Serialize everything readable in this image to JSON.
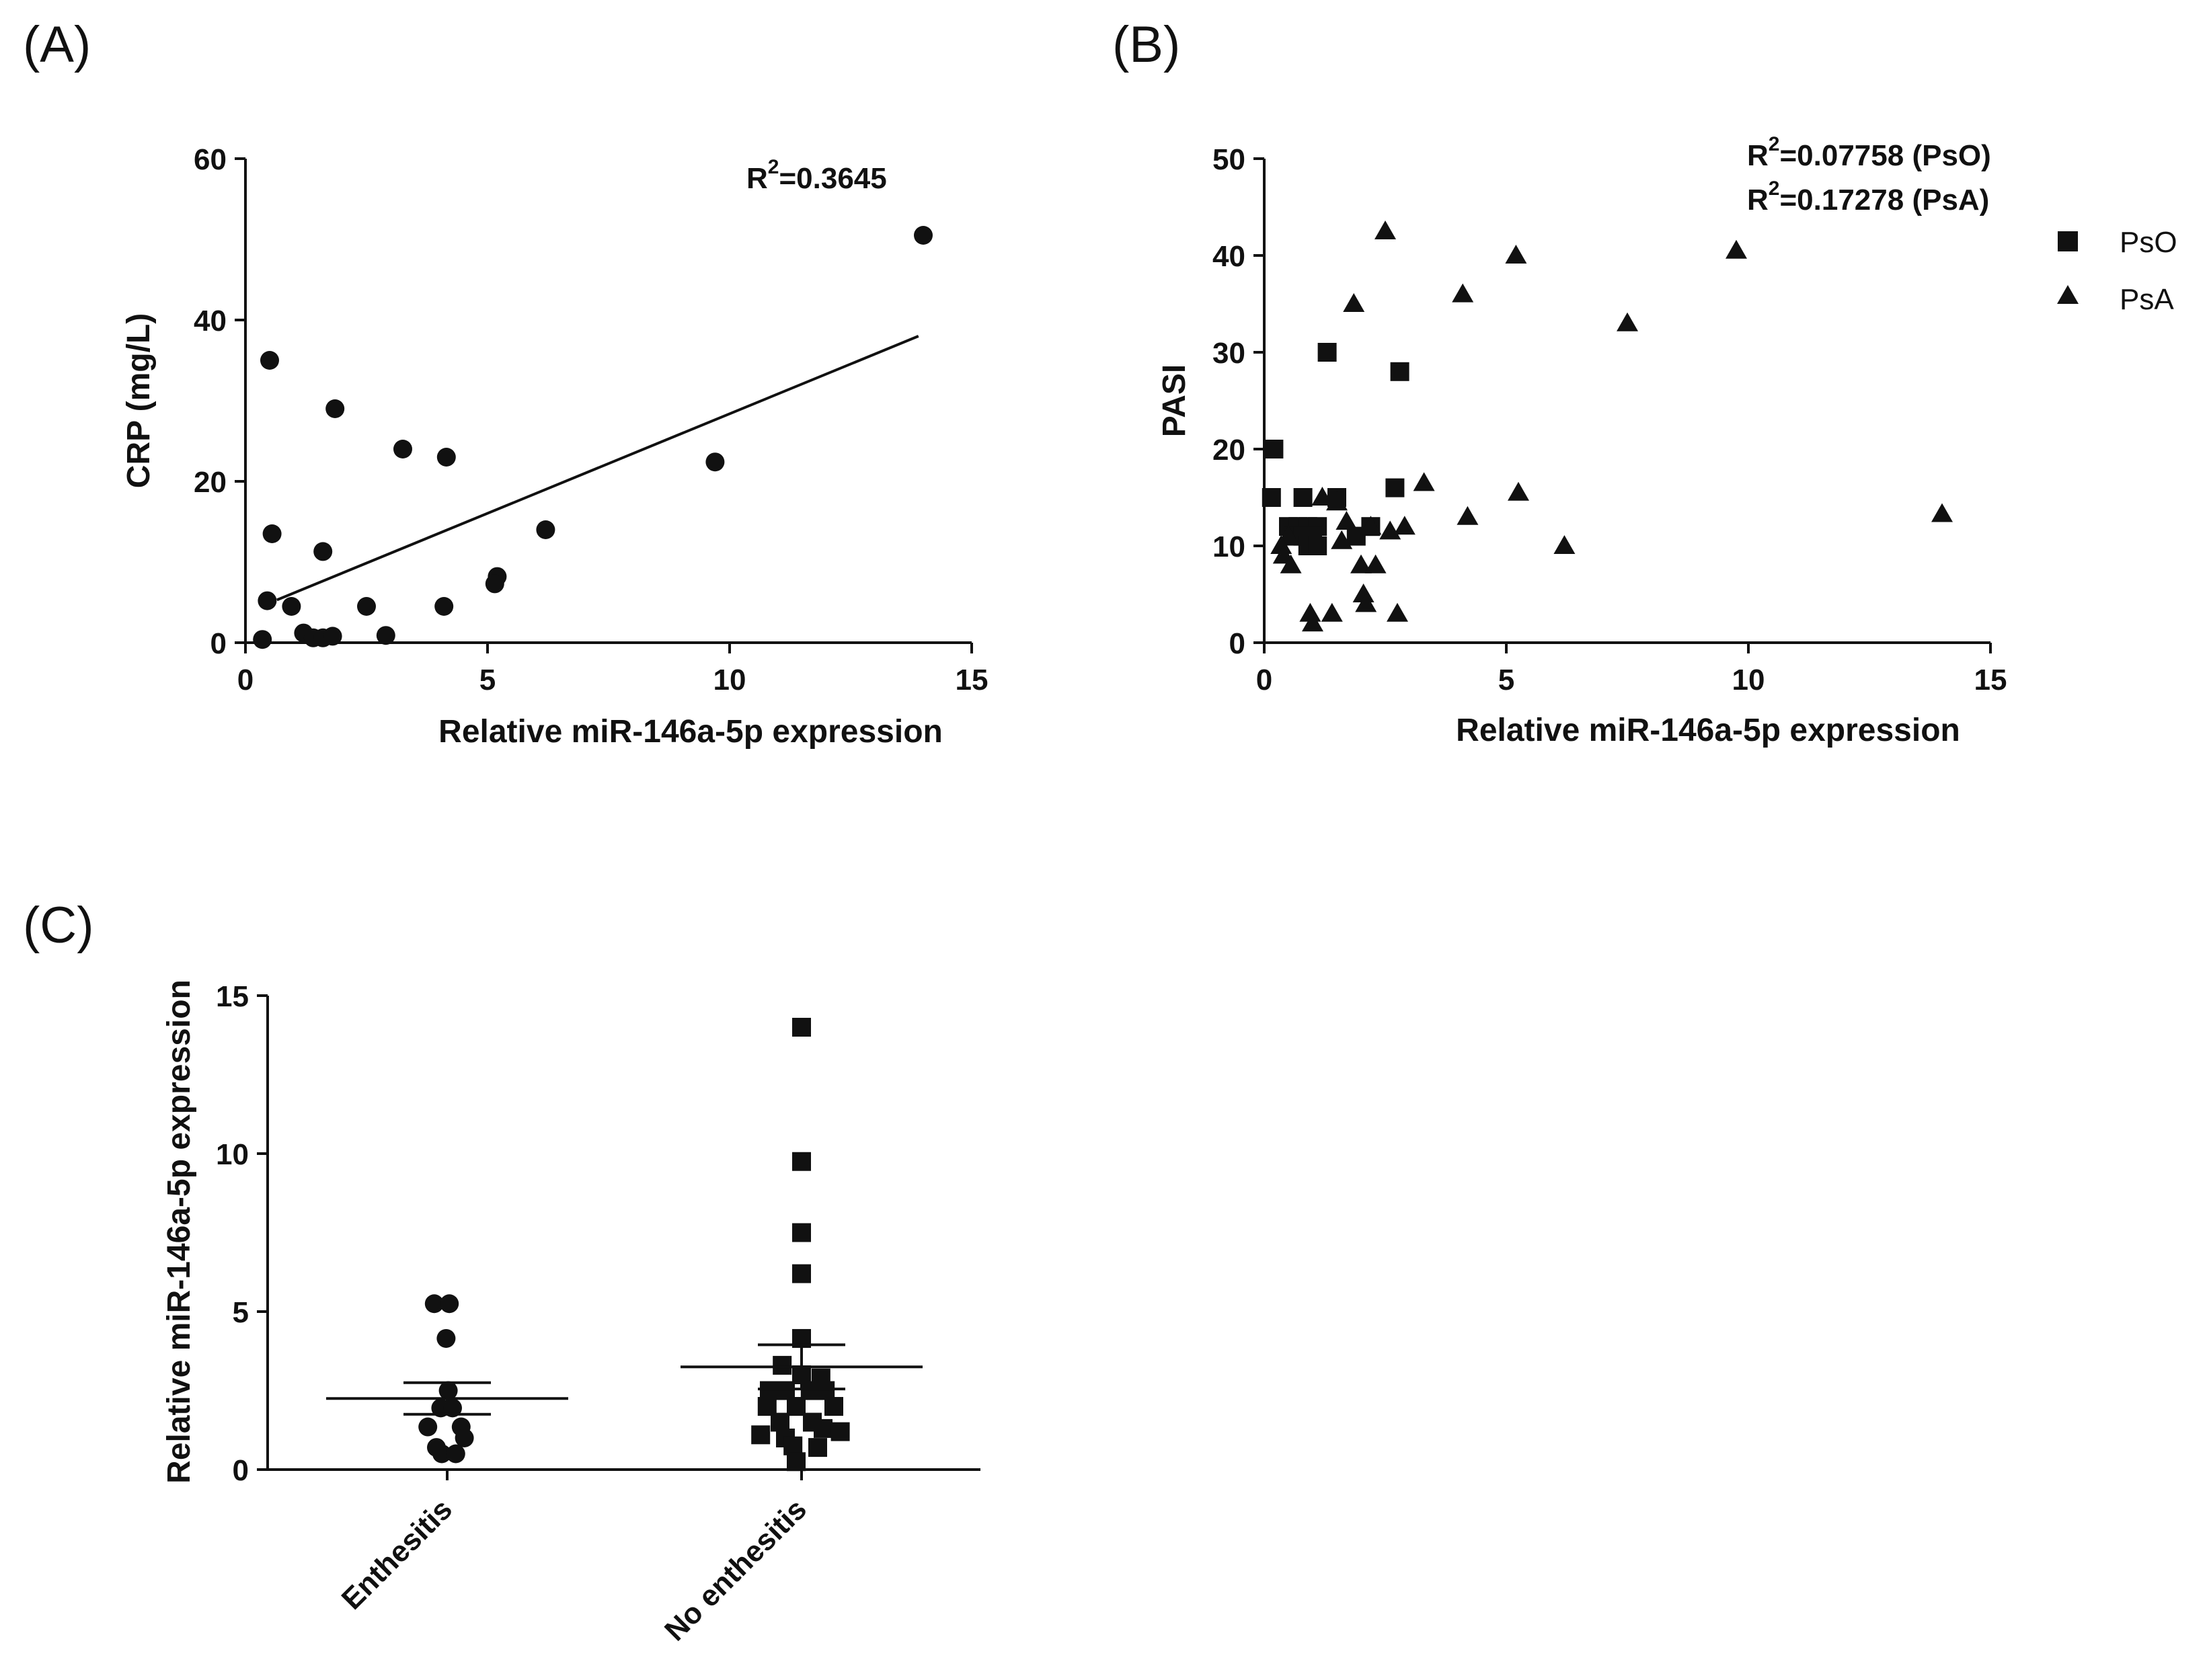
{
  "chart_data": [
    {
      "panel": "(A)",
      "type": "scatter",
      "xlabel": "Relative miR-146a-5p expression",
      "ylabel": "CRP (mg/L)",
      "xlim": [
        0,
        15
      ],
      "ylim": [
        0,
        60
      ],
      "xticks": [
        0,
        5,
        10,
        15
      ],
      "yticks": [
        0,
        20,
        40,
        60
      ],
      "annotation": {
        "text": "R",
        "sup": "2",
        "suffix": "=0.3645"
      },
      "marker": "circle",
      "points": [
        [
          0.5,
          35.0
        ],
        [
          0.55,
          13.5
        ],
        [
          0.45,
          5.2
        ],
        [
          0.35,
          0.4
        ],
        [
          0.95,
          4.5
        ],
        [
          1.2,
          1.2
        ],
        [
          1.4,
          0.6
        ],
        [
          1.6,
          11.3
        ],
        [
          1.6,
          0.6
        ],
        [
          1.85,
          29.0
        ],
        [
          1.8,
          0.8
        ],
        [
          2.5,
          4.5
        ],
        [
          2.9,
          0.9
        ],
        [
          3.25,
          24.0
        ],
        [
          4.15,
          23.0
        ],
        [
          4.1,
          4.5
        ],
        [
          5.2,
          8.2
        ],
        [
          5.15,
          7.3
        ],
        [
          6.2,
          14.0
        ],
        [
          9.7,
          22.4
        ],
        [
          14.0,
          50.5
        ]
      ],
      "fit_line": {
        "x": [
          0.65,
          13.9
        ],
        "y": [
          5.3,
          38.0
        ]
      }
    },
    {
      "panel": "(B)",
      "type": "scatter",
      "xlabel": "Relative miR-146a-5p expression",
      "ylabel": "PASI",
      "xlim": [
        0,
        15
      ],
      "ylim": [
        0,
        50
      ],
      "xticks": [
        0,
        5,
        10,
        15
      ],
      "yticks": [
        0,
        10,
        20,
        30,
        40,
        50
      ],
      "annotations": [
        {
          "text": "R",
          "sup": "2",
          "suffix": "=0.07758 (PsO)"
        },
        {
          "text": "R",
          "sup": "2",
          "suffix": "=0.17278 (PsA)"
        }
      ],
      "legend": {
        "position": "right",
        "entries": [
          "PsO",
          "PsA"
        ]
      },
      "series": [
        {
          "name": "PsO",
          "marker": "square",
          "points": [
            [
              0.2,
              20.0
            ],
            [
              0.15,
              15.0
            ],
            [
              1.3,
              30.0
            ],
            [
              2.8,
              28.0
            ],
            [
              2.7,
              16.0
            ],
            [
              0.8,
              15.0
            ],
            [
              1.5,
              15.0
            ],
            [
              0.5,
              12.0
            ],
            [
              0.7,
              12.0
            ],
            [
              0.9,
              12.0
            ],
            [
              1.1,
              12.0
            ],
            [
              2.2,
              12.0
            ],
            [
              0.6,
              11.0
            ],
            [
              0.8,
              11.0
            ],
            [
              1.0,
              11.0
            ],
            [
              1.9,
              11.0
            ],
            [
              0.9,
              10.0
            ],
            [
              1.1,
              10.0
            ]
          ]
        },
        {
          "name": "PsA",
          "marker": "triangle",
          "points": [
            [
              2.5,
              42.5
            ],
            [
              5.2,
              40.0
            ],
            [
              9.75,
              40.5
            ],
            [
              4.1,
              36.0
            ],
            [
              1.85,
              35.0
            ],
            [
              7.5,
              33.0
            ],
            [
              3.3,
              16.5
            ],
            [
              5.25,
              15.5
            ],
            [
              1.2,
              15.0
            ],
            [
              1.5,
              14.5
            ],
            [
              14.0,
              13.3
            ],
            [
              4.2,
              13.0
            ],
            [
              1.7,
              12.5
            ],
            [
              2.2,
              12.0
            ],
            [
              2.6,
              11.5
            ],
            [
              2.9,
              12.0
            ],
            [
              0.5,
              11.0
            ],
            [
              1.6,
              10.5
            ],
            [
              6.2,
              10.0
            ],
            [
              0.35,
              10.0
            ],
            [
              0.4,
              9.0
            ],
            [
              0.55,
              8.0
            ],
            [
              2.0,
              8.0
            ],
            [
              2.3,
              8.0
            ],
            [
              2.05,
              5.0
            ],
            [
              2.1,
              4.0
            ],
            [
              0.95,
              3.0
            ],
            [
              1.4,
              3.0
            ],
            [
              2.75,
              3.0
            ],
            [
              1.0,
              2.0
            ]
          ]
        }
      ]
    },
    {
      "panel": "(C)",
      "type": "scatter",
      "xlabel": "",
      "ylabel": "Relative miR-146a-5p expression",
      "ylim": [
        0,
        15
      ],
      "yticks": [
        0,
        5,
        10,
        15
      ],
      "categories": [
        "Enthesitis",
        "No enthesitis"
      ],
      "groups": [
        {
          "category": "Enthesitis",
          "marker": "circle",
          "mean": 2.25,
          "sem_upper": 2.75,
          "sem_lower": 1.75,
          "points": [
            [
              -0.12,
              5.25
            ],
            [
              0.02,
              5.25
            ],
            [
              -0.01,
              4.15
            ],
            [
              0.01,
              2.5
            ],
            [
              -0.06,
              1.95
            ],
            [
              0.05,
              1.95
            ],
            [
              -0.18,
              1.35
            ],
            [
              0.13,
              1.35
            ],
            [
              0.16,
              1.0
            ],
            [
              -0.1,
              0.7
            ],
            [
              -0.05,
              0.5
            ],
            [
              0.08,
              0.5
            ]
          ]
        },
        {
          "category": "No enthesitis",
          "marker": "square",
          "mean": 3.25,
          "sem_upper": 3.95,
          "sem_lower": 2.55,
          "points": [
            [
              0.0,
              14.0
            ],
            [
              0.0,
              9.75
            ],
            [
              0.0,
              7.5
            ],
            [
              0.0,
              6.2
            ],
            [
              0.0,
              4.15
            ],
            [
              -0.18,
              3.3
            ],
            [
              0.0,
              3.0
            ],
            [
              0.18,
              2.9
            ],
            [
              -0.3,
              2.5
            ],
            [
              -0.15,
              2.5
            ],
            [
              0.08,
              2.5
            ],
            [
              0.22,
              2.5
            ],
            [
              -0.32,
              2.0
            ],
            [
              -0.05,
              2.0
            ],
            [
              0.3,
              2.0
            ],
            [
              -0.2,
              1.5
            ],
            [
              0.1,
              1.5
            ],
            [
              0.2,
              1.3
            ],
            [
              -0.38,
              1.1
            ],
            [
              -0.15,
              1.0
            ],
            [
              0.36,
              1.2
            ],
            [
              -0.08,
              0.75
            ],
            [
              0.15,
              0.7
            ],
            [
              -0.05,
              0.25
            ]
          ]
        }
      ]
    }
  ]
}
